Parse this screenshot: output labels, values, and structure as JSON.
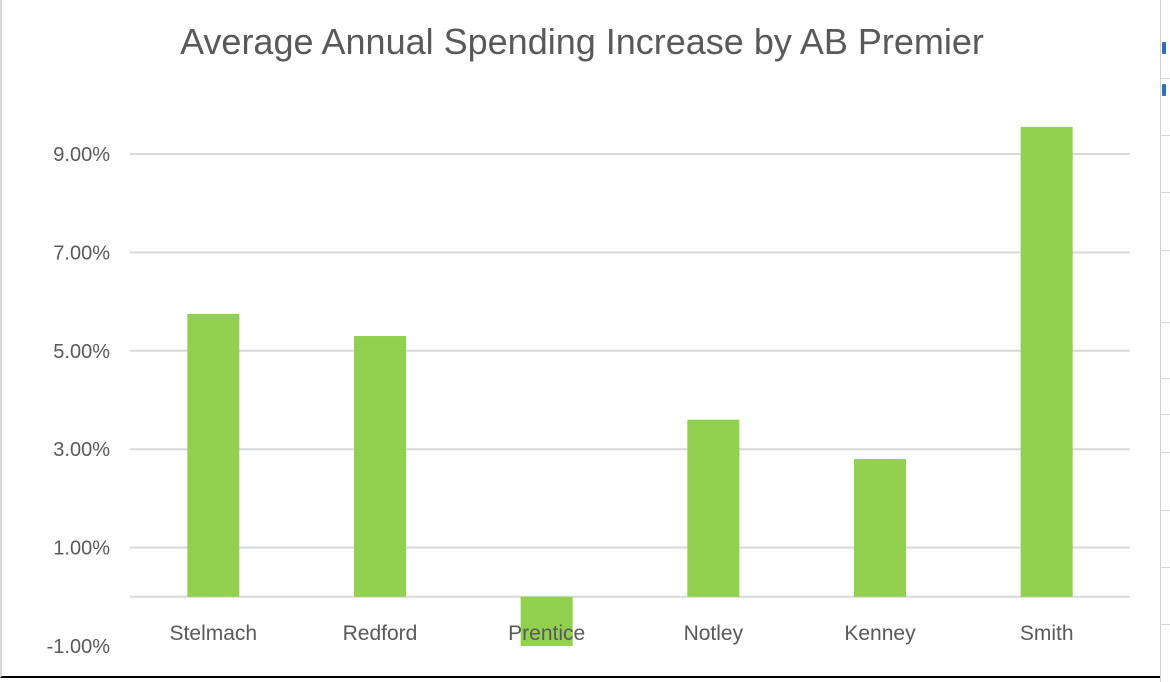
{
  "chart_data": {
    "type": "bar",
    "title": "Average Annual Spending Increase by AB Premier",
    "xlabel": "",
    "ylabel": "",
    "categories": [
      "Stelmach",
      "Redford",
      "Prentice",
      "Notley",
      "Kenney",
      "Smith"
    ],
    "series": [
      {
        "name": "Average Annual Spending Increase",
        "values": [
          5.75,
          5.3,
          -1.0,
          3.6,
          2.8,
          9.55
        ]
      }
    ],
    "yticks": [
      -1,
      1,
      3,
      5,
      7,
      9
    ],
    "ytick_labels": [
      "-1.00%",
      "1.00%",
      "3.00%",
      "5.00%",
      "7.00%",
      "9.00%"
    ],
    "ylim": [
      -1,
      10
    ],
    "grid": true,
    "legend": "none",
    "bar_color": "#92d050",
    "grid_color": "#d9d9d9",
    "text_color": "#595959"
  }
}
